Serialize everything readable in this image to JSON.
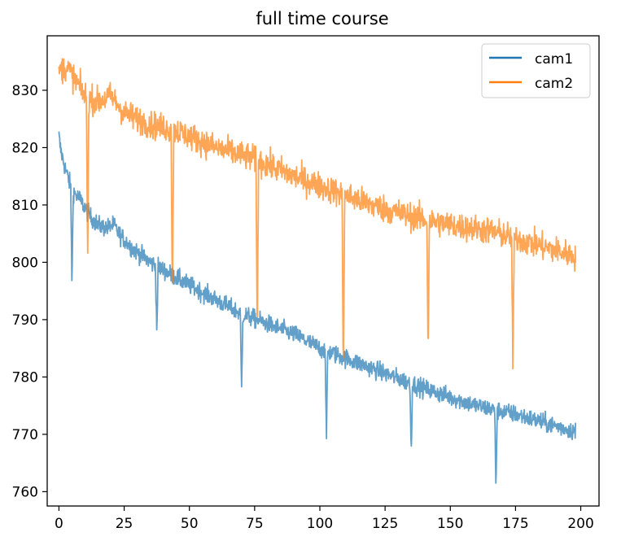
{
  "chart_data": {
    "type": "line",
    "title": "full time course",
    "xlabel": "",
    "ylabel": "",
    "xlim": [
      -4.5,
      207
    ],
    "ylim": [
      757.5,
      839.5
    ],
    "xticks": [
      0,
      25,
      50,
      75,
      100,
      125,
      150,
      175,
      200
    ],
    "yticks": [
      760,
      770,
      780,
      790,
      800,
      810,
      820,
      830
    ],
    "grid": false,
    "legend_position": "top-right",
    "series": [
      {
        "name": "cam1",
        "color": "#1f77b4",
        "x_range": [
          0,
          198
        ],
        "noise": 0.8,
        "baseline": [
          [
            0,
            822
          ],
          [
            0.5,
            820
          ],
          [
            2,
            817
          ],
          [
            4,
            814
          ],
          [
            6,
            812
          ],
          [
            8,
            811
          ],
          [
            12,
            808
          ],
          [
            15,
            806.5
          ],
          [
            18,
            806
          ],
          [
            21,
            806.5
          ],
          [
            23,
            805
          ],
          [
            28,
            802.5
          ],
          [
            35,
            800
          ],
          [
            50,
            796
          ],
          [
            70,
            791
          ],
          [
            90,
            787.5
          ],
          [
            100,
            785
          ],
          [
            120,
            781.5
          ],
          [
            140,
            778
          ],
          [
            160,
            775
          ],
          [
            175,
            773.5
          ],
          [
            190,
            771.5
          ],
          [
            198,
            770.5
          ]
        ],
        "dips": [
          [
            5,
            796
          ],
          [
            37.5,
            787.5
          ],
          [
            70,
            777.5
          ],
          [
            102.5,
            768.5
          ],
          [
            135,
            767
          ],
          [
            167.5,
            761
          ]
        ]
      },
      {
        "name": "cam2",
        "color": "#ff7f0e",
        "x_range": [
          0,
          198
        ],
        "noise": 1.2,
        "baseline": [
          [
            0,
            833.5
          ],
          [
            3,
            834
          ],
          [
            6,
            832
          ],
          [
            10,
            829
          ],
          [
            15,
            828
          ],
          [
            20,
            829
          ],
          [
            25,
            826
          ],
          [
            35,
            824
          ],
          [
            45,
            823
          ],
          [
            60,
            820
          ],
          [
            75,
            818
          ],
          [
            90,
            815
          ],
          [
            105,
            812.5
          ],
          [
            120,
            810
          ],
          [
            135,
            808
          ],
          [
            150,
            806.5
          ],
          [
            165,
            805.5
          ],
          [
            180,
            803.5
          ],
          [
            198,
            801
          ]
        ],
        "dips": [
          [
            11,
            801.5
          ],
          [
            43.5,
            793.5
          ],
          [
            76,
            786.5
          ],
          [
            109,
            780
          ],
          [
            141.5,
            784.5
          ],
          [
            174,
            780.5
          ]
        ]
      }
    ]
  }
}
